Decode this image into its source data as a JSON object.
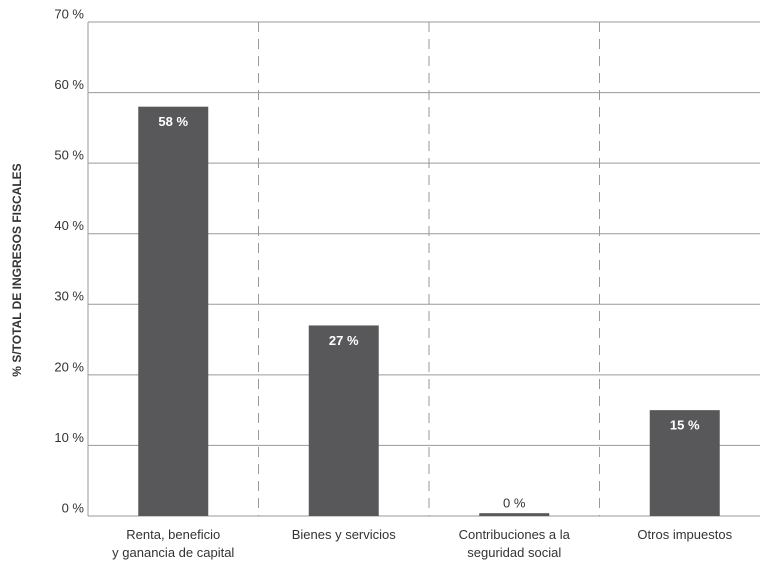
{
  "chart_data": {
    "type": "bar",
    "y_label": "% S/TOTAL DE INGRESOS FISCALES",
    "categories": [
      "Renta, beneficio\ny ganancia de capital",
      "Bienes y servicios",
      "Contribuciones a la\nseguridad social",
      "Otros impuestos"
    ],
    "values": [
      58,
      27,
      0.4,
      15
    ],
    "value_labels": [
      "58 %",
      "27 %",
      "0 %",
      "15 %"
    ],
    "color": "#58585a",
    "ylim": [
      0,
      70
    ],
    "yticks": [
      {
        "value": 0,
        "label": "0 %"
      },
      {
        "value": 10,
        "label": "10 %"
      },
      {
        "value": 20,
        "label": "20 %"
      },
      {
        "value": 30,
        "label": "30 %"
      },
      {
        "value": 40,
        "label": "40 %"
      },
      {
        "value": 50,
        "label": "50 %"
      },
      {
        "value": 60,
        "label": "60 %"
      },
      {
        "value": 70,
        "label": "70 %"
      }
    ],
    "grid": true
  }
}
